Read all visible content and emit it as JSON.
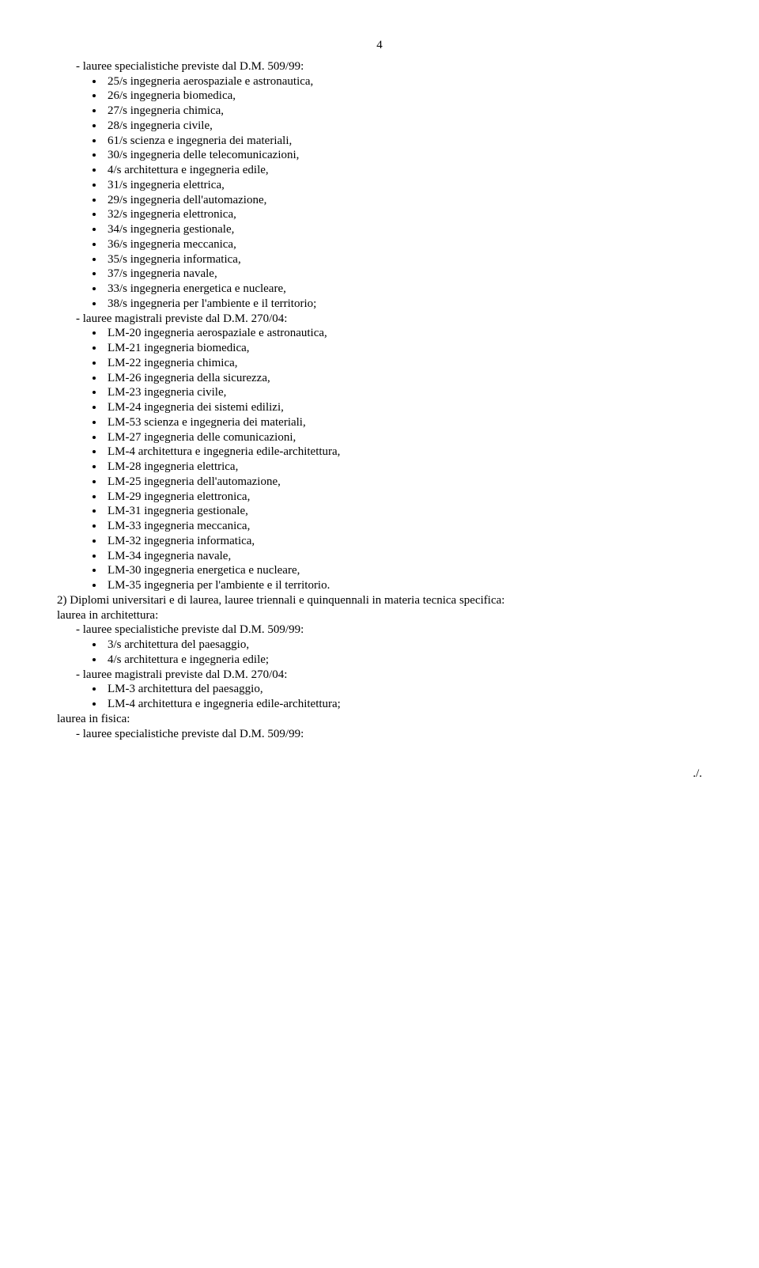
{
  "pageNumber": "4",
  "l1_intro": "lauree specialistiche previste dal D.M. 509/99:",
  "l1_items": [
    "25/s ingegneria aerospaziale e astronautica,",
    "26/s ingegneria biomedica,",
    "27/s ingegneria chimica,",
    "28/s ingegneria civile,",
    "61/s scienza e ingegneria dei materiali,",
    "30/s ingegneria delle telecomunicazioni,",
    "4/s architettura e ingegneria edile,",
    "31/s ingegneria elettrica,",
    "29/s ingegneria dell'automazione,",
    "32/s ingegneria elettronica,",
    "34/s ingegneria gestionale,",
    "36/s ingegneria meccanica,",
    "35/s ingegneria informatica,",
    "37/s ingegneria navale,",
    "33/s ingegneria energetica e nucleare,",
    "38/s ingegneria per l'ambiente e il territorio;"
  ],
  "l2_intro": "lauree magistrali previste dal D.M. 270/04:",
  "l2_items": [
    "LM-20 ingegneria aerospaziale e astronautica,",
    "LM-21 ingegneria biomedica,",
    "LM-22 ingegneria chimica,",
    "LM-26 ingegneria della sicurezza,",
    "LM-23 ingegneria civile,",
    "LM-24 ingegneria dei sistemi edilizi,",
    "LM-53 scienza e ingegneria dei materiali,",
    "LM-27 ingegneria delle comunicazioni,",
    "LM-4 architettura e ingegneria edile-architettura,",
    "LM-28 ingegneria elettrica,",
    "LM-25 ingegneria dell'automazione,",
    "LM-29 ingegneria elettronica,",
    "LM-31 ingegneria gestionale,",
    "LM-33 ingegneria meccanica,",
    "LM-32 ingegneria informatica,",
    "LM-34 ingegneria navale,",
    "LM-30 ingegneria energetica e nucleare,",
    "LM-35 ingegneria per l'ambiente e il territorio."
  ],
  "section2_header": "2) Diplomi universitari e di laurea, lauree triennali e quinquennali in materia tecnica specifica:",
  "arch_label": "laurea in architettura:",
  "arch_spec_intro": "lauree specialistiche previste dal D.M. 509/99:",
  "arch_spec_items": [
    "3/s architettura del paesaggio,",
    "4/s architettura e ingegneria edile;"
  ],
  "arch_mag_intro": "lauree magistrali previste dal D.M. 270/04:",
  "arch_mag_items": [
    "LM-3 architettura del paesaggio,",
    "LM-4 architettura e ingegneria edile-architettura;"
  ],
  "fisica_label": "laurea in fisica:",
  "fisica_spec_intro": "lauree specialistiche previste dal D.M. 509/99:",
  "footer_mark": "./."
}
